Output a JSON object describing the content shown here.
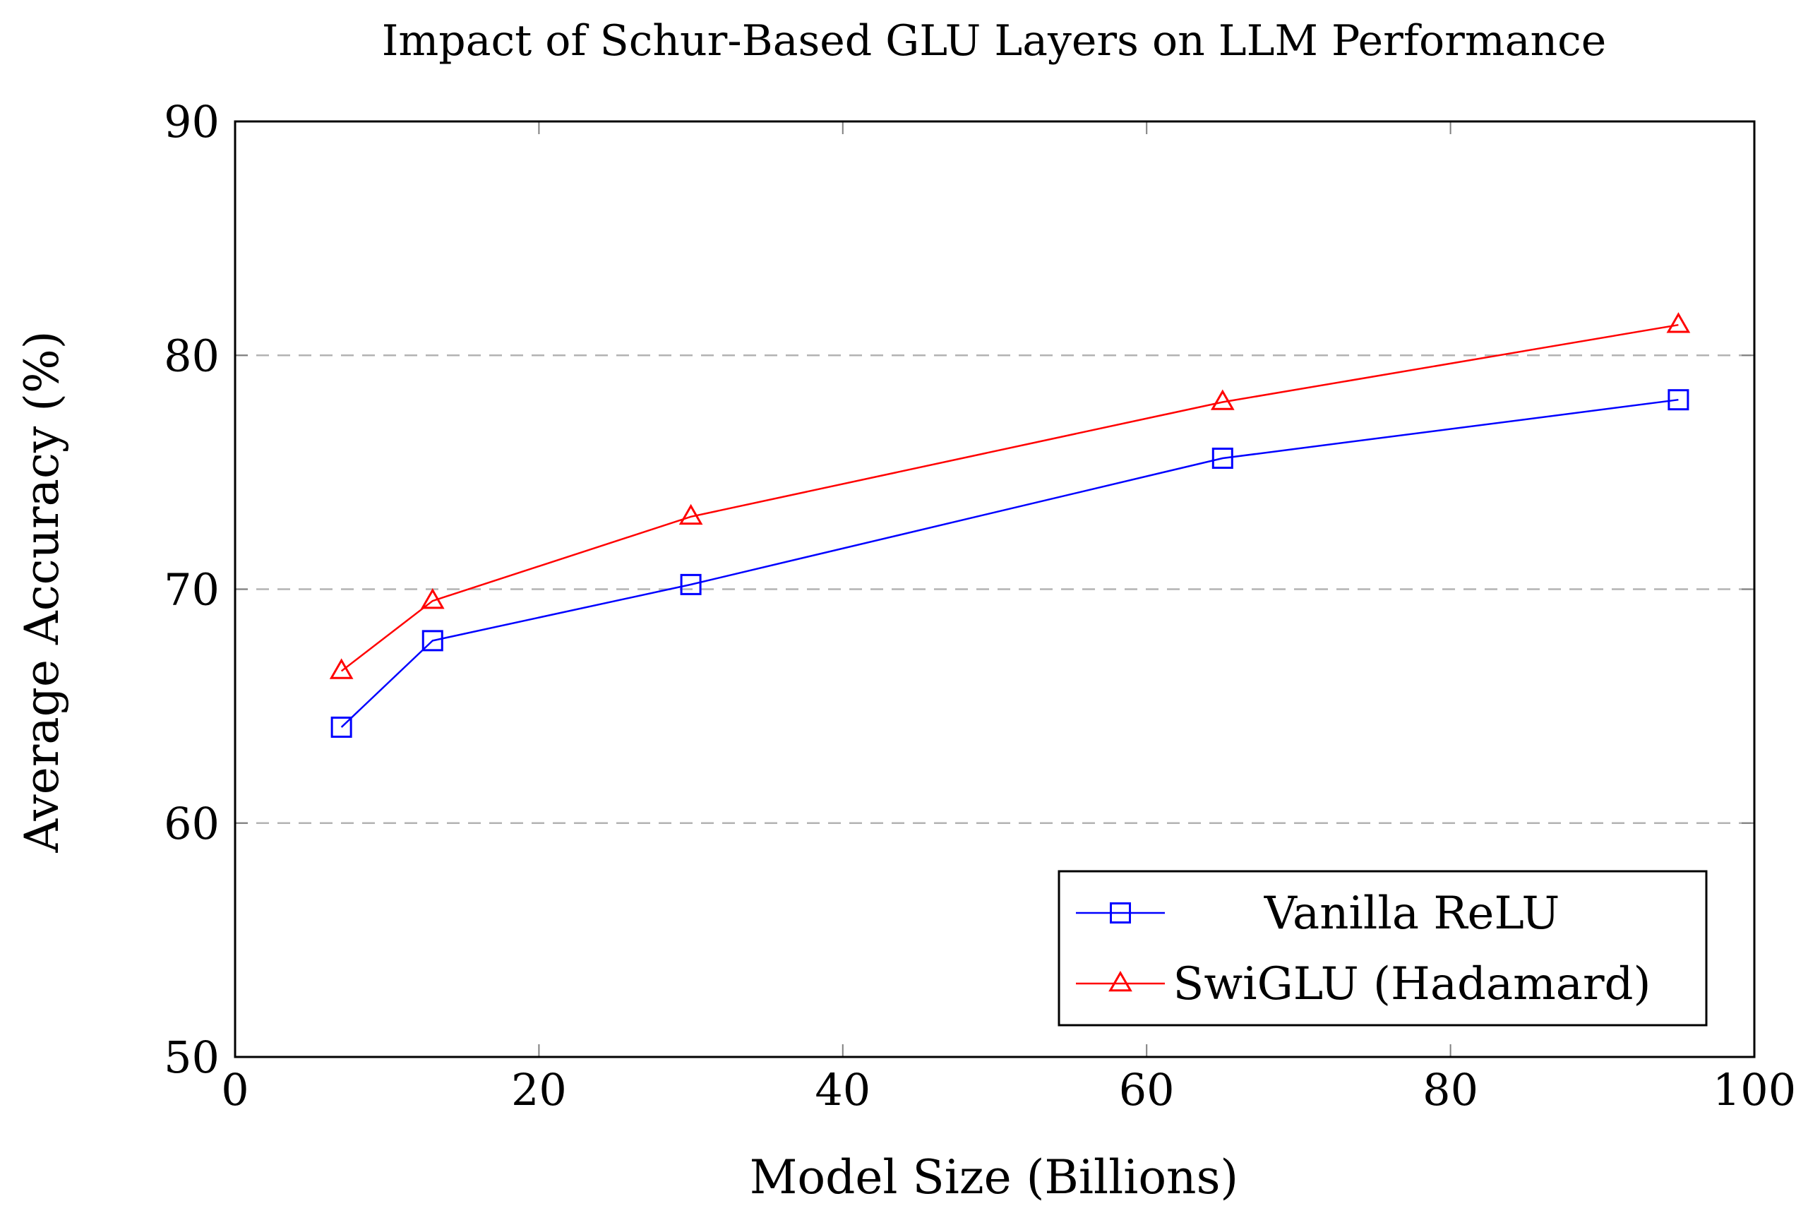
{
  "chart_data": {
    "type": "line",
    "title": "Impact of Schur-Based GLU Layers on LLM Performance",
    "xlabel": "Model Size (Billions)",
    "ylabel": "Average Accuracy (%)",
    "xlim": [
      0,
      100
    ],
    "ylim": [
      50,
      90
    ],
    "xticks": [
      0,
      20,
      40,
      60,
      80,
      100
    ],
    "yticks": [
      50,
      60,
      70,
      80,
      90
    ],
    "grid": "horizontal dashed at 60, 70, 80",
    "legend_position": "bottom-right",
    "series": [
      {
        "name": "Vanilla ReLU",
        "color": "#0000ff",
        "marker": "square",
        "x": [
          7,
          13,
          30,
          65,
          95
        ],
        "y": [
          64.1,
          67.8,
          70.2,
          75.6,
          78.1
        ]
      },
      {
        "name": "SwiGLU (Hadamard)",
        "color": "#ff0000",
        "marker": "triangle",
        "x": [
          7,
          13,
          30,
          65,
          95
        ],
        "y": [
          66.5,
          69.5,
          73.1,
          78.0,
          81.3
        ]
      }
    ]
  }
}
